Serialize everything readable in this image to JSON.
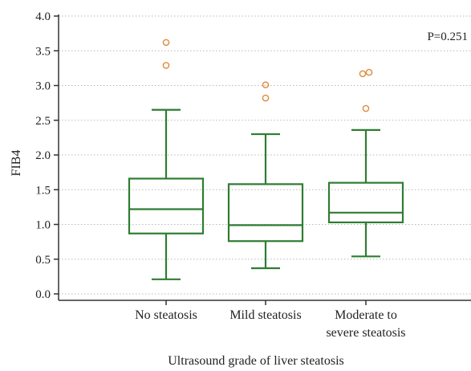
{
  "chart_data": {
    "type": "box",
    "ylabel": "FIB4",
    "xlabel": "Ultrasound grade of liver steatosis",
    "ylim": [
      0,
      4
    ],
    "yticks": [
      "0.0",
      "0.5",
      "1.0",
      "1.5",
      "2.0",
      "2.5",
      "3.0",
      "3.5",
      "4.0"
    ],
    "grid": true,
    "annotation": "P=0.251",
    "categories": [
      {
        "lines": [
          "No steatosis"
        ]
      },
      {
        "lines": [
          "Mild steatosis"
        ]
      },
      {
        "lines": [
          "Moderate to",
          "severe steatosis"
        ]
      }
    ],
    "boxes": [
      {
        "whisker_low": 0.21,
        "q1": 0.87,
        "median": 1.22,
        "q3": 1.66,
        "whisker_high": 2.65,
        "outliers": [
          3.29,
          3.62
        ]
      },
      {
        "whisker_low": 0.37,
        "q1": 0.76,
        "median": 0.99,
        "q3": 1.58,
        "whisker_high": 2.3,
        "outliers": [
          2.82,
          3.01
        ]
      },
      {
        "whisker_low": 0.54,
        "q1": 1.03,
        "median": 1.17,
        "q3": 1.6,
        "whisker_high": 2.36,
        "outliers": [
          2.67,
          3.17,
          3.19
        ]
      }
    ],
    "colors": {
      "box": "#2e7d32",
      "outlier": "#e08a3c",
      "grid": "#b8b8b8"
    }
  }
}
